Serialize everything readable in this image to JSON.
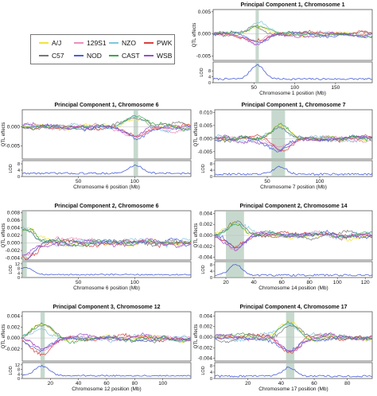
{
  "legend": [
    {
      "name": "A/J",
      "color": "#f2e33b"
    },
    {
      "name": "129S1",
      "color": "#ec8fbf"
    },
    {
      "name": "NZO",
      "color": "#7ec6e0"
    },
    {
      "name": "PWK",
      "color": "#d94040"
    },
    {
      "name": "C57",
      "color": "#777777"
    },
    {
      "name": "NOD",
      "color": "#4a5fd9"
    },
    {
      "name": "CAST",
      "color": "#3ea64c"
    },
    {
      "name": "WSB",
      "color": "#9a4fc6"
    }
  ],
  "lod_color": "#4a5fd9",
  "highlight_color": "#a9c4b4",
  "chart_data": [
    {
      "type": "line",
      "title": "Principal Component 1, Chromosome 1",
      "ylabel": "QTL effects",
      "lod_ylabel": "LOD",
      "xlabel": "Chromosome 1 position (Mb)",
      "xlim": [
        0,
        195
      ],
      "xticks": [
        "50",
        "100",
        "150"
      ],
      "xtick_values": [
        50,
        100,
        150
      ],
      "ylim": [
        -0.006,
        0.0055
      ],
      "yticks": [
        "-0.005",
        "0.000",
        "0.005"
      ],
      "ytick_values": [
        -0.005,
        0,
        0.005
      ],
      "lod_ylim": [
        0,
        14
      ],
      "lod_yticks": [
        "0",
        "4",
        "8"
      ],
      "lod_ytick_values": [
        0,
        4,
        8
      ],
      "peak": 54,
      "highlight": [
        52,
        56
      ],
      "amplitude": 0.003,
      "lod_peak": 12,
      "lod_base": 2.5
    },
    {
      "type": "line",
      "title": "Principal Component 1, Chromosome 6",
      "ylabel": "QTL effects",
      "lod_ylabel": "LOD",
      "xlabel": "Chromosome 6 position (Mb)",
      "xlim": [
        0,
        150
      ],
      "xticks": [
        "50",
        "100"
      ],
      "xtick_values": [
        50,
        100
      ],
      "ylim": [
        -0.0085,
        0.0045
      ],
      "yticks": [
        "-0.005",
        "0.000"
      ],
      "ytick_values": [
        -0.005,
        0
      ],
      "lod_ylim": [
        0,
        10
      ],
      "lod_yticks": [
        "0",
        "4",
        "8"
      ],
      "lod_ytick_values": [
        0,
        4,
        8
      ],
      "peak": 101,
      "highlight": [
        99,
        103
      ],
      "amplitude": 0.004,
      "lod_peak": 7,
      "lod_base": 2
    },
    {
      "type": "line",
      "title": "Principal Component 1, Chromosome 7",
      "ylabel": "QTL effects",
      "lod_ylabel": "LOD",
      "xlabel": "Chromosome 7 position (Mb)",
      "xlim": [
        0,
        150
      ],
      "xticks": [
        "50",
        "100"
      ],
      "xtick_values": [
        50,
        100
      ],
      "ylim": [
        -0.0078,
        0.011
      ],
      "yticks": [
        "-0.005",
        "0.000",
        "0.005",
        "0.010"
      ],
      "ytick_values": [
        -0.005,
        0,
        0.005,
        0.01
      ],
      "lod_ylim": [
        0,
        10
      ],
      "lod_yticks": [
        "0",
        "4",
        "8"
      ],
      "lod_ytick_values": [
        0,
        4,
        8
      ],
      "peak": 62,
      "highlight": [
        54,
        67
      ],
      "amplitude": 0.006,
      "lod_peak": 6,
      "lod_base": 1.5
    },
    {
      "type": "line",
      "title": "Principal Component 2, Chromosome 6",
      "ylabel": "QTL effects",
      "lod_ylabel": "LOD",
      "xlabel": "Chromosome 6 position (Mb)",
      "xlim": [
        0,
        150
      ],
      "xticks": [
        "50",
        "100"
      ],
      "xtick_values": [
        50,
        100
      ],
      "ylim": [
        -0.0045,
        0.0085
      ],
      "yticks": [
        "-0.004",
        "-0.002",
        "0.000",
        "0.002",
        "0.004",
        "0.006",
        "0.008"
      ],
      "ytick_values": [
        -0.004,
        -0.002,
        0,
        0.002,
        0.004,
        0.006,
        0.008
      ],
      "lod_ylim": [
        0,
        14
      ],
      "lod_yticks": [
        "0",
        "4",
        "8",
        "12"
      ],
      "lod_ytick_values": [
        0,
        4,
        8,
        12
      ],
      "peak": 3,
      "highlight": [
        0,
        4
      ],
      "amplitude": 0.005,
      "lod_peak": 9,
      "lod_base": 2.5
    },
    {
      "type": "line",
      "title": "Principal Component 2, Chromosome 14",
      "ylabel": "QTL effects",
      "lod_ylabel": "LOD",
      "xlabel": "Chromosome 14 position (Mb)",
      "xlim": [
        12,
        125
      ],
      "xticks": [
        "20",
        "40",
        "60",
        "80",
        "100",
        "120"
      ],
      "xtick_values": [
        20,
        40,
        60,
        80,
        100,
        120
      ],
      "ylim": [
        -0.0045,
        0.0045
      ],
      "yticks": [
        "-0.004",
        "-0.002",
        "0.000",
        "0.002",
        "0.004"
      ],
      "ytick_values": [
        -0.004,
        -0.002,
        0,
        0.002,
        0.004
      ],
      "lod_ylim": [
        0,
        10
      ],
      "lod_yticks": [
        "0",
        "4",
        "8"
      ],
      "lod_ytick_values": [
        0,
        4,
        8
      ],
      "peak": 27,
      "highlight": [
        20,
        33
      ],
      "amplitude": 0.003,
      "lod_peak": 8,
      "lod_base": 1.5
    },
    {
      "type": "line",
      "title": "Principal Component 3, Chromosome 12",
      "ylabel": "QTL effects",
      "lod_ylabel": "LOD",
      "xlabel": "Chromosome 12 position (Mb)",
      "xlim": [
        0,
        120
      ],
      "xticks": [
        "20",
        "40",
        "60",
        "80",
        "100"
      ],
      "xtick_values": [
        20,
        40,
        60,
        80,
        100
      ],
      "ylim": [
        -0.0042,
        0.0048
      ],
      "yticks": [
        "-0.002",
        "0.000",
        "0.002",
        "0.004"
      ],
      "ytick_values": [
        -0.002,
        0,
        0.002,
        0.004
      ],
      "lod_ylim": [
        0,
        14
      ],
      "lod_yticks": [
        "0",
        "4",
        "8",
        "12"
      ],
      "lod_ytick_values": [
        0,
        4,
        8,
        12
      ],
      "peak": 14,
      "highlight": [
        13,
        16
      ],
      "amplitude": 0.003,
      "lod_peak": 11,
      "lod_base": 2.5
    },
    {
      "type": "line",
      "title": "Principal Component 4, Chromosome 17",
      "ylabel": "QTL effects",
      "lod_ylabel": "LOD",
      "xlabel": "Chromosome 17 position (Mb)",
      "xlim": [
        0,
        95
      ],
      "xticks": [
        "20",
        "40",
        "60",
        "80"
      ],
      "xtick_values": [
        20,
        40,
        60,
        80
      ],
      "ylim": [
        -0.0045,
        0.0048
      ],
      "yticks": [
        "-0.004",
        "-0.002",
        "0.000",
        "0.002",
        "0.004"
      ],
      "ytick_values": [
        -0.004,
        -0.002,
        0,
        0.002,
        0.004
      ],
      "lod_ylim": [
        0,
        10
      ],
      "lod_yticks": [
        "0",
        "4",
        "8"
      ],
      "lod_ytick_values": [
        0,
        4,
        8
      ],
      "peak": 45,
      "highlight": [
        43,
        48
      ],
      "amplitude": 0.003,
      "lod_peak": 7,
      "lod_base": 1.5
    }
  ]
}
